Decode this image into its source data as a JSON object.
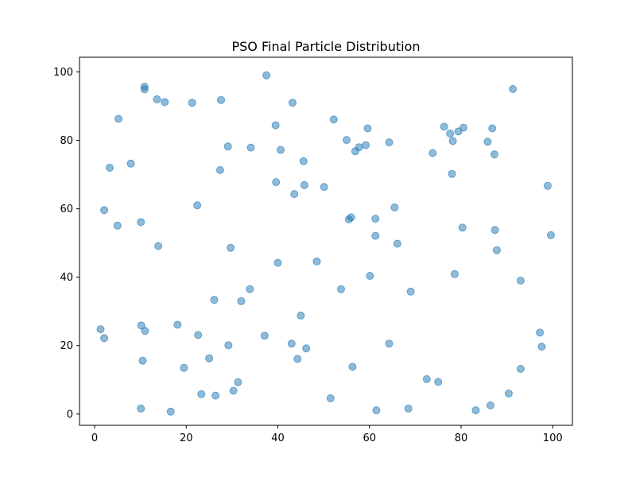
{
  "chart_data": {
    "type": "scatter",
    "title": "PSO Final Particle Distribution",
    "xlabel": "",
    "ylabel": "",
    "xlim": [
      -3.3,
      104.3
    ],
    "ylim": [
      -3.3,
      104.3
    ],
    "xticks": [
      0,
      20,
      40,
      60,
      80,
      100
    ],
    "yticks": [
      0,
      20,
      40,
      60,
      80,
      100
    ],
    "grid": false,
    "color": "#1f77b4",
    "points": [
      {
        "x": 10.9,
        "y": 95.7
      },
      {
        "x": 10.9,
        "y": 94.9
      },
      {
        "x": 13.6,
        "y": 92.0
      },
      {
        "x": 15.3,
        "y": 91.2
      },
      {
        "x": 21.3,
        "y": 91.0
      },
      {
        "x": 27.6,
        "y": 91.8
      },
      {
        "x": 37.5,
        "y": 99.0
      },
      {
        "x": 43.2,
        "y": 91.0
      },
      {
        "x": 91.3,
        "y": 95.0
      },
      {
        "x": 5.2,
        "y": 86.3
      },
      {
        "x": 52.2,
        "y": 86.1
      },
      {
        "x": 39.5,
        "y": 84.4
      },
      {
        "x": 59.6,
        "y": 83.5
      },
      {
        "x": 76.3,
        "y": 84.0
      },
      {
        "x": 77.6,
        "y": 82.0
      },
      {
        "x": 79.4,
        "y": 82.6
      },
      {
        "x": 80.5,
        "y": 83.7
      },
      {
        "x": 86.8,
        "y": 83.5
      },
      {
        "x": 55.0,
        "y": 80.1
      },
      {
        "x": 64.3,
        "y": 79.4
      },
      {
        "x": 78.2,
        "y": 79.8
      },
      {
        "x": 85.8,
        "y": 79.6
      },
      {
        "x": 29.1,
        "y": 78.2
      },
      {
        "x": 34.1,
        "y": 77.9
      },
      {
        "x": 40.6,
        "y": 77.2
      },
      {
        "x": 57.7,
        "y": 78.0
      },
      {
        "x": 59.2,
        "y": 78.6
      },
      {
        "x": 56.9,
        "y": 76.8
      },
      {
        "x": 73.8,
        "y": 76.3
      },
      {
        "x": 87.3,
        "y": 75.9
      },
      {
        "x": 3.3,
        "y": 72.0
      },
      {
        "x": 7.9,
        "y": 73.2
      },
      {
        "x": 27.4,
        "y": 71.3
      },
      {
        "x": 45.6,
        "y": 73.9
      },
      {
        "x": 78.0,
        "y": 70.2
      },
      {
        "x": 39.6,
        "y": 67.8
      },
      {
        "x": 45.8,
        "y": 66.9
      },
      {
        "x": 50.1,
        "y": 66.4
      },
      {
        "x": 43.6,
        "y": 64.3
      },
      {
        "x": 98.9,
        "y": 66.7
      },
      {
        "x": 2.1,
        "y": 59.6
      },
      {
        "x": 22.4,
        "y": 61.0
      },
      {
        "x": 65.5,
        "y": 60.4
      },
      {
        "x": 10.1,
        "y": 56.1
      },
      {
        "x": 55.5,
        "y": 56.9
      },
      {
        "x": 56.0,
        "y": 57.5
      },
      {
        "x": 61.3,
        "y": 57.1
      },
      {
        "x": 5.0,
        "y": 55.1
      },
      {
        "x": 80.3,
        "y": 54.5
      },
      {
        "x": 87.4,
        "y": 53.8
      },
      {
        "x": 61.3,
        "y": 52.1
      },
      {
        "x": 99.6,
        "y": 52.3
      },
      {
        "x": 13.9,
        "y": 49.1
      },
      {
        "x": 29.7,
        "y": 48.6
      },
      {
        "x": 66.1,
        "y": 49.8
      },
      {
        "x": 87.8,
        "y": 47.9
      },
      {
        "x": 40.0,
        "y": 44.2
      },
      {
        "x": 48.5,
        "y": 44.6
      },
      {
        "x": 60.1,
        "y": 40.4
      },
      {
        "x": 78.6,
        "y": 40.9
      },
      {
        "x": 93.0,
        "y": 39.0
      },
      {
        "x": 33.9,
        "y": 36.5
      },
      {
        "x": 53.8,
        "y": 36.5
      },
      {
        "x": 69.0,
        "y": 35.8
      },
      {
        "x": 26.1,
        "y": 33.4
      },
      {
        "x": 32.0,
        "y": 33.0
      },
      {
        "x": 45.0,
        "y": 28.8
      },
      {
        "x": 18.1,
        "y": 26.1
      },
      {
        "x": 10.2,
        "y": 25.9
      },
      {
        "x": 1.3,
        "y": 24.8
      },
      {
        "x": 11.0,
        "y": 24.3
      },
      {
        "x": 97.2,
        "y": 23.8
      },
      {
        "x": 2.1,
        "y": 22.2
      },
      {
        "x": 22.6,
        "y": 23.1
      },
      {
        "x": 37.1,
        "y": 22.9
      },
      {
        "x": 29.2,
        "y": 20.1
      },
      {
        "x": 43.0,
        "y": 20.6
      },
      {
        "x": 46.2,
        "y": 19.2
      },
      {
        "x": 64.3,
        "y": 20.6
      },
      {
        "x": 97.6,
        "y": 19.7
      },
      {
        "x": 10.5,
        "y": 15.6
      },
      {
        "x": 25.0,
        "y": 16.3
      },
      {
        "x": 44.3,
        "y": 16.1
      },
      {
        "x": 19.5,
        "y": 13.5
      },
      {
        "x": 56.3,
        "y": 13.8
      },
      {
        "x": 93.0,
        "y": 13.2
      },
      {
        "x": 31.3,
        "y": 9.3
      },
      {
        "x": 72.5,
        "y": 10.2
      },
      {
        "x": 75.0,
        "y": 9.4
      },
      {
        "x": 30.3,
        "y": 6.8
      },
      {
        "x": 23.3,
        "y": 5.8
      },
      {
        "x": 26.4,
        "y": 5.4
      },
      {
        "x": 51.5,
        "y": 4.6
      },
      {
        "x": 90.4,
        "y": 6.0
      },
      {
        "x": 10.1,
        "y": 1.6
      },
      {
        "x": 16.6,
        "y": 0.7
      },
      {
        "x": 61.5,
        "y": 1.1
      },
      {
        "x": 68.5,
        "y": 1.6
      },
      {
        "x": 83.2,
        "y": 1.1
      },
      {
        "x": 86.4,
        "y": 2.5
      }
    ]
  }
}
